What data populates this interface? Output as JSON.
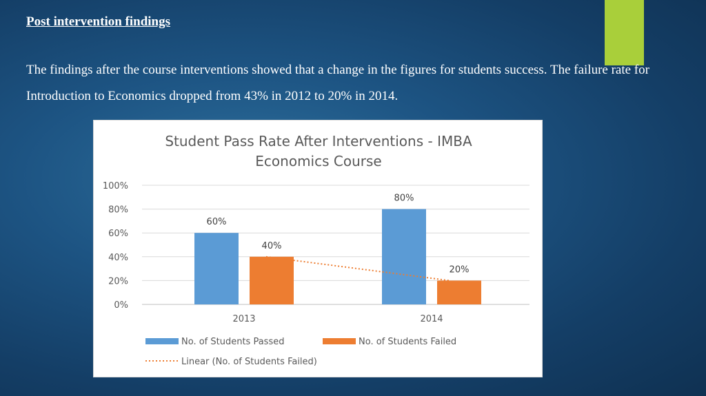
{
  "slide": {
    "heading": "Post intervention findings",
    "body": "The findings after the course interventions showed that a change in the figures for students success. The failure rate for Introduction to Economics dropped from 43% in 2012 to 20% in 2014."
  },
  "colors": {
    "accent": "#a9cf3a",
    "passed": "#5b9bd5",
    "failed": "#ed7d31",
    "trend": "#ed7d31"
  },
  "chart_data": {
    "type": "bar",
    "title_lines": [
      "Student Pass Rate After Interventions - IMBA",
      "Economics Course"
    ],
    "categories": [
      "2013",
      "2014"
    ],
    "series": [
      {
        "name": "No. of Students Passed",
        "values": [
          60,
          80
        ],
        "labels": [
          "60%",
          "80%"
        ]
      },
      {
        "name": "No. of Students Failed",
        "values": [
          40,
          20
        ],
        "labels": [
          "40%",
          "20%"
        ]
      }
    ],
    "trendline": {
      "name": "Linear (No. of Students Failed)",
      "series": "No. of Students Failed"
    },
    "y_ticks": [
      "0%",
      "20%",
      "40%",
      "60%",
      "80%",
      "100%"
    ],
    "ylim": [
      0,
      100
    ],
    "grid": true,
    "legend_position": "bottom"
  }
}
